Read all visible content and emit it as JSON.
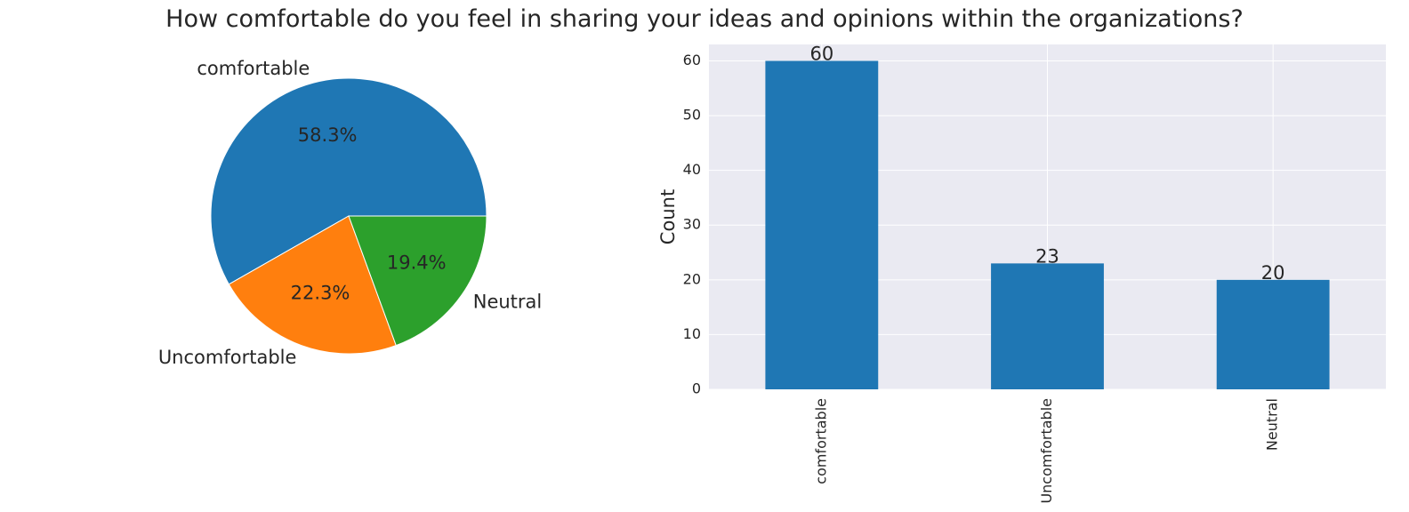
{
  "figure": {
    "title": "How comfortable do you feel in sharing your ideas and opinions within the organizations?"
  },
  "chart_data": [
    {
      "type": "pie",
      "categories": [
        "comfortable",
        "Uncomfortable",
        "Neutral"
      ],
      "values": [
        60,
        23,
        20
      ],
      "percent_labels": [
        "58.3%",
        "22.3%",
        "19.4%"
      ],
      "colors": [
        "#1f77b4",
        "#ff7f0e",
        "#2ca02c"
      ]
    },
    {
      "type": "bar",
      "categories": [
        "comfortable",
        "Uncomfortable",
        "Neutral"
      ],
      "values": [
        60,
        23,
        20
      ],
      "data_labels": [
        "60",
        "23",
        "20"
      ],
      "xlabel": "",
      "ylabel": "Count",
      "ylim": [
        0,
        63
      ],
      "yticks": [
        0,
        10,
        20,
        30,
        40,
        50,
        60
      ],
      "bar_color": "#1f77b4",
      "background": "#eaeaf2",
      "grid": true
    }
  ]
}
